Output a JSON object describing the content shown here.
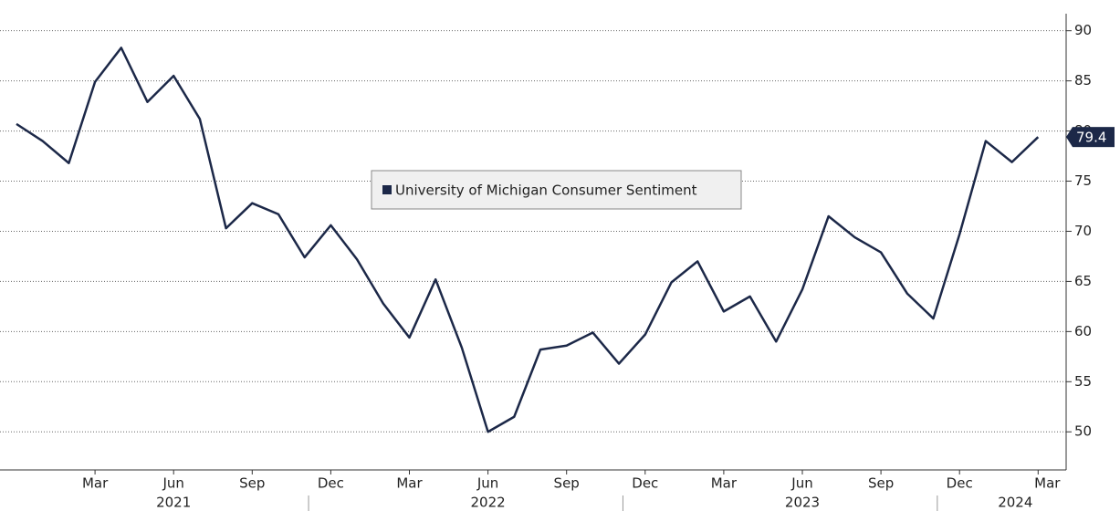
{
  "chart_data": {
    "type": "line",
    "categories": [
      null,
      null,
      null,
      "Mar",
      null,
      null,
      "Jun",
      null,
      null,
      "Sep",
      null,
      null,
      "Dec",
      null,
      null,
      "Mar",
      null,
      null,
      "Jun",
      null,
      null,
      "Sep",
      null,
      null,
      "Dec",
      null,
      null,
      "Mar",
      null,
      null,
      "Jun",
      null,
      null,
      "Sep",
      null,
      null,
      "Dec",
      null,
      null,
      "Mar"
    ],
    "years": [
      "2021",
      "2022",
      "2023",
      "2024"
    ],
    "series": [
      {
        "name": "University of Michigan Consumer Sentiment",
        "color": "#1c2848",
        "values": [
          80.7,
          79.0,
          76.8,
          84.9,
          88.3,
          82.9,
          85.5,
          81.2,
          70.3,
          72.8,
          71.7,
          67.4,
          70.6,
          67.2,
          62.8,
          59.4,
          65.2,
          58.4,
          50.0,
          51.5,
          58.2,
          58.6,
          59.9,
          56.8,
          59.7,
          64.9,
          67.0,
          62.0,
          63.5,
          59.0,
          64.2,
          71.5,
          69.4,
          67.9,
          63.8,
          61.3,
          69.7,
          79.0,
          76.9,
          79.4
        ]
      }
    ],
    "ylim": [
      46.2,
      91.7
    ],
    "yticks": [
      50,
      55,
      60,
      65,
      70,
      75,
      80,
      85,
      90
    ],
    "grid": true
  }
}
